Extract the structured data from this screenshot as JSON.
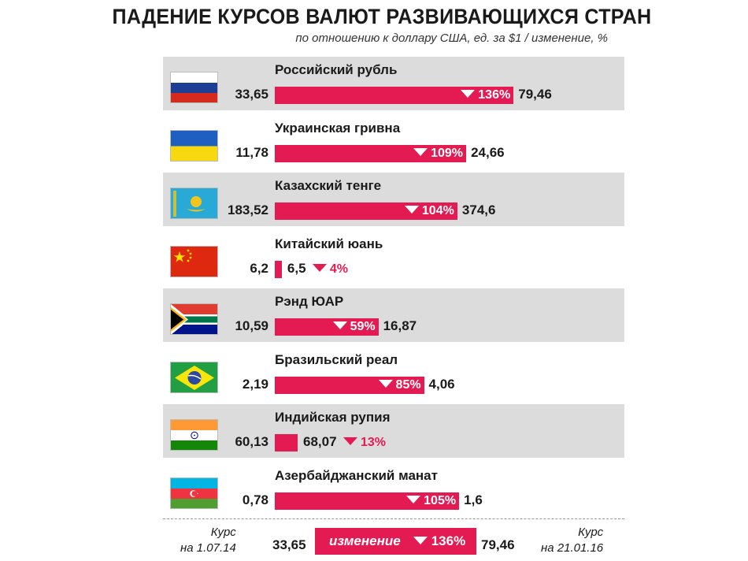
{
  "title": "ПАДЕНИЕ КУРСОВ ВАЛЮТ РАЗВИВАЮЩИХСЯ СТРАН",
  "subtitle": "по отношению к доллару США, ед. за $1 / изменение, %",
  "chart_data": {
    "type": "bar",
    "title": "ПАДЕНИЕ КУРСОВ ВАЛЮТ РАЗВИВАЮЩИХСЯ СТРАН",
    "subtitle": "по отношению к доллару США, ед. за $1 / изменение, %",
    "categories": [
      "Российский рубль",
      "Украинская гривна",
      "Казахский тенге",
      "Китайский юань",
      "Рэнд ЮАР",
      "Бразильский реал",
      "Индийская рупия",
      "Азербайджанский манат"
    ],
    "series": [
      {
        "name": "Курс на 1.07.14",
        "values": [
          33.65,
          11.78,
          183.52,
          6.2,
          10.59,
          2.19,
          60.13,
          0.78
        ]
      },
      {
        "name": "Курс на 21.01.16",
        "values": [
          79.46,
          24.66,
          374.6,
          6.5,
          16.87,
          4.06,
          68.07,
          1.6
        ]
      },
      {
        "name": "изменение",
        "values": [
          136,
          109,
          104,
          4,
          59,
          85,
          13,
          105
        ]
      }
    ]
  },
  "rows": [
    {
      "name": "Российский рубль",
      "v1": "33,65",
      "v2": "79,46",
      "pct": "136%",
      "change": 136,
      "flag": "russia-flag"
    },
    {
      "name": "Украинская гривна",
      "v1": "11,78",
      "v2": "24,66",
      "pct": "109%",
      "change": 109,
      "flag": "ukraine-flag"
    },
    {
      "name": "Казахский тенге",
      "v1": "183,52",
      "v2": "374,6",
      "pct": "104%",
      "change": 104,
      "flag": "kazakhstan-flag"
    },
    {
      "name": "Китайский юань",
      "v1": "6,2",
      "v2": "6,5",
      "pct": "4%",
      "change": 4,
      "flag": "china-flag"
    },
    {
      "name": "Рэнд ЮАР",
      "v1": "10,59",
      "v2": "16,87",
      "pct": "59%",
      "change": 59,
      "flag": "south-africa-flag"
    },
    {
      "name": "Бразильский реал",
      "v1": "2,19",
      "v2": "4,06",
      "pct": "85%",
      "change": 85,
      "flag": "brazil-flag"
    },
    {
      "name": "Индийская рупия",
      "v1": "60,13",
      "v2": "68,07",
      "pct": "13%",
      "change": 13,
      "flag": "india-flag"
    },
    {
      "name": "Азербайджанский манат",
      "v1": "0,78",
      "v2": "1,6",
      "pct": "105%",
      "change": 105,
      "flag": "azerbaijan-flag"
    }
  ],
  "legend": {
    "left_line1": "Курс",
    "left_line2": "на 1.07.14",
    "v1": "33,65",
    "bar_label": "изменение",
    "pct": "136%",
    "v2": "79,46",
    "right_line1": "Курс",
    "right_line2": "на 21.01.16"
  },
  "colors": {
    "bar": "#e31b52",
    "row_shade": "#dcdcdc"
  }
}
